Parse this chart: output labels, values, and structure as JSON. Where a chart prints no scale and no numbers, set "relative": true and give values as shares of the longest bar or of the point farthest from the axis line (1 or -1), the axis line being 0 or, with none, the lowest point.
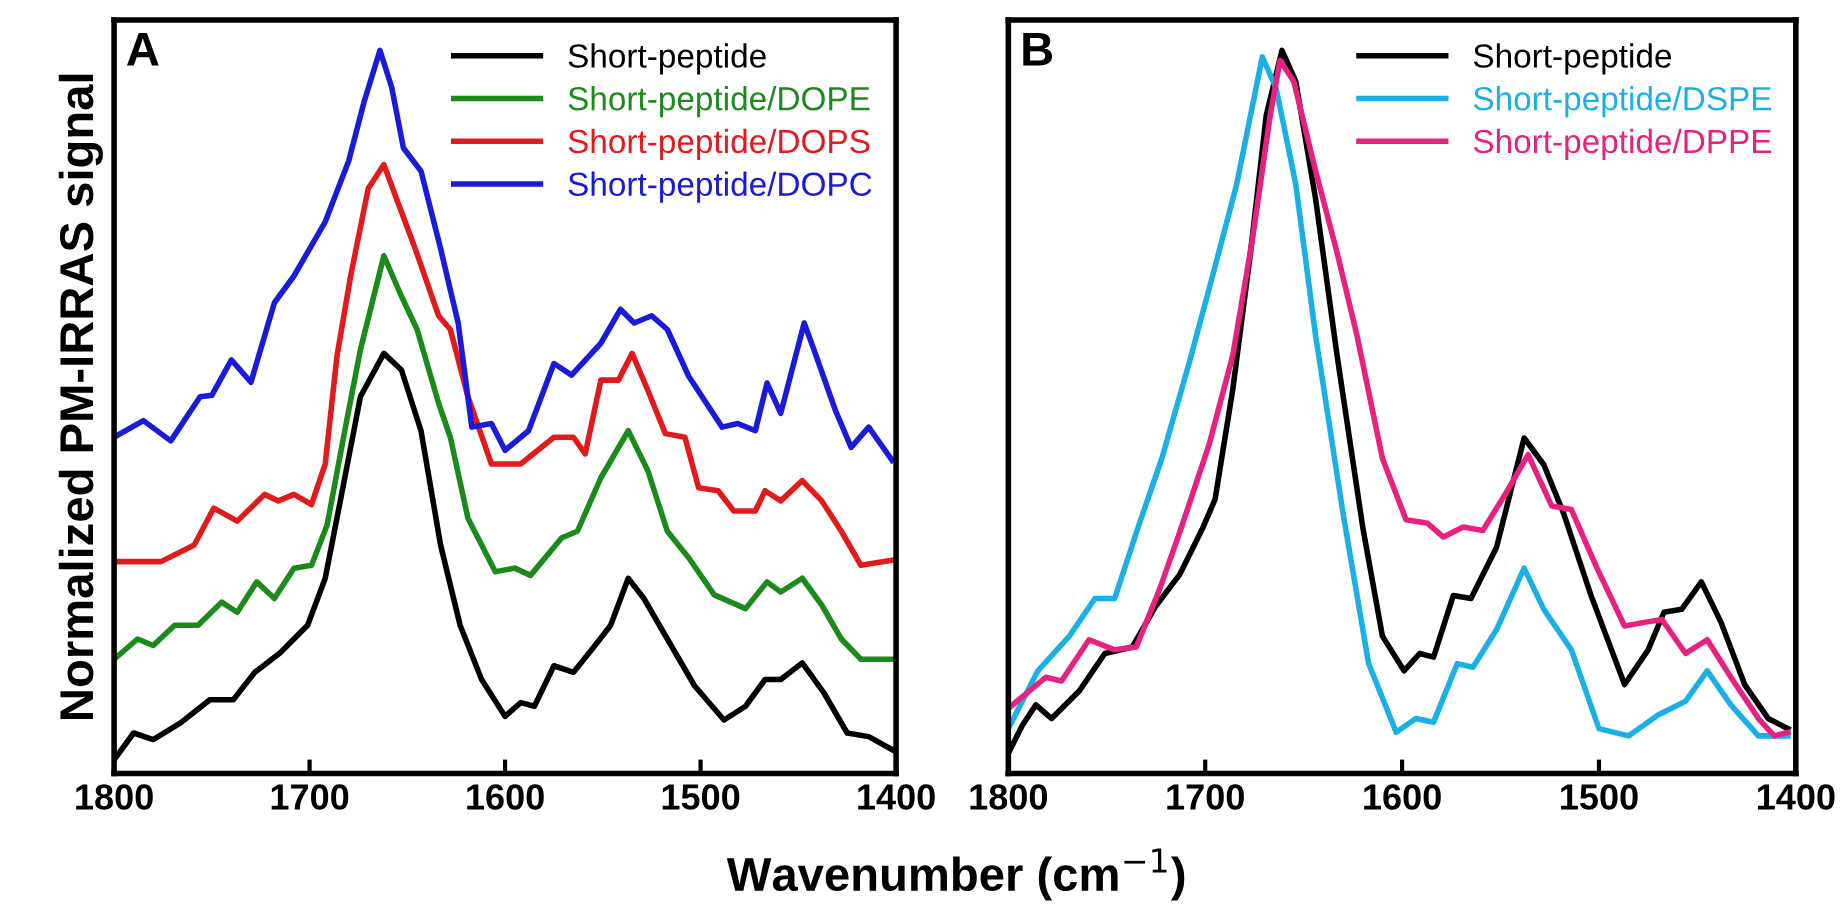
{
  "chart_data": [
    {
      "type": "line",
      "title": "A",
      "ylabel": "Normalized PM-IRRAS signal",
      "xlabel": "Wavenumber (cm$^{−1}$)",
      "relative": true,
      "xlim": [
        1800,
        1400
      ],
      "xticks": [
        1800,
        1700,
        1600,
        1500,
        1400
      ],
      "tick_labels": "x",
      "legend": "top right",
      "series": [
        {
          "name": "Short-peptide",
          "color": "#000000",
          "x": [
            1800,
            1790,
            1780,
            1766,
            1751,
            1739,
            1728,
            1715,
            1701,
            1692,
            1684,
            1674,
            1662,
            1653,
            1643,
            1633,
            1623,
            1612,
            1600,
            1592,
            1585,
            1575,
            1565,
            1554,
            1546,
            1537,
            1529,
            1517,
            1503,
            1488,
            1477,
            1467,
            1459,
            1448,
            1437,
            1425,
            1414,
            1402
          ],
          "values": [
            0.019,
            0.056,
            0.047,
            0.07,
            0.102,
            0.102,
            0.14,
            0.167,
            0.205,
            0.27,
            0.381,
            0.521,
            0.581,
            0.558,
            0.474,
            0.316,
            0.205,
            0.13,
            0.079,
            0.098,
            0.093,
            0.149,
            0.14,
            0.177,
            0.205,
            0.27,
            0.242,
            0.186,
            0.121,
            0.074,
            0.093,
            0.13,
            0.13,
            0.153,
            0.112,
            0.056,
            0.051,
            0.033
          ]
        },
        {
          "name": "Short-peptide/DOPE",
          "color": "#1a8a1a",
          "x": [
            1800,
            1788,
            1780,
            1769,
            1757,
            1745,
            1737,
            1727,
            1718,
            1708,
            1699,
            1691,
            1682,
            1674,
            1662,
            1653,
            1645,
            1634,
            1628,
            1619,
            1605,
            1595,
            1587,
            1571,
            1563,
            1551,
            1537,
            1527,
            1517,
            1506,
            1493,
            1477,
            1466,
            1459,
            1448,
            1438,
            1428,
            1418,
            1402
          ],
          "values": [
            0.158,
            0.186,
            0.177,
            0.205,
            0.205,
            0.237,
            0.223,
            0.265,
            0.242,
            0.284,
            0.288,
            0.344,
            0.474,
            0.586,
            0.716,
            0.66,
            0.614,
            0.512,
            0.465,
            0.353,
            0.279,
            0.284,
            0.274,
            0.326,
            0.335,
            0.409,
            0.474,
            0.419,
            0.335,
            0.298,
            0.247,
            0.228,
            0.265,
            0.251,
            0.27,
            0.233,
            0.186,
            0.158,
            0.158
          ]
        },
        {
          "name": "Short-peptide/DOPS",
          "color": "#e31a1c",
          "x": [
            1800,
            1776,
            1759,
            1749,
            1737,
            1723,
            1716,
            1708,
            1699,
            1692,
            1686,
            1679,
            1670,
            1662,
            1655,
            1646,
            1634,
            1628,
            1619,
            1607,
            1592,
            1575,
            1565,
            1559,
            1551,
            1542,
            1535,
            1527,
            1518,
            1508,
            1501,
            1491,
            1483,
            1472,
            1467,
            1459,
            1448,
            1438,
            1428,
            1418,
            1402
          ],
          "values": [
            0.293,
            0.293,
            0.316,
            0.367,
            0.349,
            0.386,
            0.377,
            0.386,
            0.372,
            0.428,
            0.577,
            0.688,
            0.809,
            0.842,
            0.791,
            0.726,
            0.633,
            0.614,
            0.521,
            0.428,
            0.428,
            0.465,
            0.465,
            0.442,
            0.544,
            0.544,
            0.581,
            0.53,
            0.47,
            0.465,
            0.395,
            0.391,
            0.363,
            0.363,
            0.391,
            0.377,
            0.405,
            0.377,
            0.335,
            0.288,
            0.295
          ]
        },
        {
          "name": "Short-peptide/DOPC",
          "color": "#1a1adb",
          "x": [
            1800,
            1785,
            1771,
            1756,
            1750,
            1740,
            1730,
            1718,
            1708,
            1692,
            1680,
            1672,
            1664,
            1658,
            1652,
            1643,
            1633,
            1624,
            1617,
            1607,
            1600,
            1588,
            1575,
            1566,
            1551,
            1541,
            1534,
            1525,
            1517,
            1506,
            1489,
            1481,
            1472,
            1466,
            1459,
            1447,
            1442,
            1431,
            1423,
            1414,
            1402
          ],
          "values": [
            0.465,
            0.488,
            0.46,
            0.521,
            0.523,
            0.572,
            0.541,
            0.651,
            0.688,
            0.763,
            0.847,
            0.93,
            1.0,
            0.949,
            0.865,
            0.833,
            0.726,
            0.623,
            0.479,
            0.484,
            0.447,
            0.474,
            0.567,
            0.551,
            0.595,
            0.642,
            0.623,
            0.633,
            0.614,
            0.549,
            0.479,
            0.484,
            0.474,
            0.54,
            0.498,
            0.623,
            0.586,
            0.502,
            0.451,
            0.479,
            0.433
          ]
        }
      ]
    },
    {
      "type": "line",
      "title": "B",
      "relative": true,
      "xlim": [
        1800,
        1400
      ],
      "xticks": [
        1800,
        1700,
        1600,
        1500,
        1400
      ],
      "tick_labels": "x",
      "legend": "top right",
      "series": [
        {
          "name": "Short-peptide",
          "color": "#000000",
          "x": [
            1800,
            1793,
            1786,
            1778,
            1764,
            1751,
            1737,
            1725,
            1713,
            1701,
            1695,
            1686,
            1677,
            1669,
            1661,
            1654,
            1644,
            1633,
            1620,
            1610,
            1599,
            1591,
            1584,
            1574,
            1565,
            1552,
            1538,
            1528,
            1518,
            1504,
            1487,
            1475,
            1467,
            1458,
            1448,
            1438,
            1426,
            1414,
            1404
          ],
          "values": [
            0.028,
            0.066,
            0.095,
            0.076,
            0.114,
            0.166,
            0.175,
            0.232,
            0.275,
            0.341,
            0.379,
            0.531,
            0.72,
            0.91,
            1.0,
            0.957,
            0.796,
            0.578,
            0.341,
            0.19,
            0.142,
            0.166,
            0.161,
            0.246,
            0.242,
            0.313,
            0.464,
            0.427,
            0.36,
            0.246,
            0.123,
            0.171,
            0.223,
            0.227,
            0.265,
            0.209,
            0.123,
            0.076,
            0.062
          ]
        },
        {
          "name": "Short-peptide/DSPE",
          "color": "#1ab0e6",
          "x": [
            1800,
            1785,
            1769,
            1756,
            1746,
            1734,
            1722,
            1708,
            1695,
            1684,
            1671,
            1664,
            1654,
            1644,
            1630,
            1617,
            1603,
            1593,
            1584,
            1572,
            1564,
            1552,
            1538,
            1528,
            1514,
            1500,
            1485,
            1470,
            1456,
            1445,
            1433,
            1419,
            1404
          ],
          "values": [
            0.062,
            0.142,
            0.19,
            0.242,
            0.242,
            0.341,
            0.436,
            0.569,
            0.701,
            0.815,
            0.991,
            0.948,
            0.815,
            0.607,
            0.36,
            0.152,
            0.057,
            0.076,
            0.071,
            0.152,
            0.147,
            0.199,
            0.284,
            0.227,
            0.171,
            0.062,
            0.052,
            0.081,
            0.1,
            0.142,
            0.095,
            0.052,
            0.052
          ]
        },
        {
          "name": "Short-peptide/DPPE",
          "color": "#e8207f",
          "x": [
            1800,
            1781,
            1773,
            1759,
            1746,
            1735,
            1723,
            1712,
            1698,
            1686,
            1676,
            1667,
            1662,
            1655,
            1644,
            1633,
            1623,
            1610,
            1598,
            1587,
            1579,
            1569,
            1559,
            1547,
            1536,
            1524,
            1514,
            1501,
            1487,
            1477,
            1468,
            1456,
            1445,
            1433,
            1419,
            1411,
            1404
          ],
          "values": [
            0.09,
            0.133,
            0.128,
            0.185,
            0.171,
            0.175,
            0.256,
            0.341,
            0.455,
            0.578,
            0.739,
            0.91,
            0.986,
            0.957,
            0.834,
            0.72,
            0.607,
            0.436,
            0.351,
            0.346,
            0.327,
            0.341,
            0.336,
            0.389,
            0.441,
            0.37,
            0.365,
            0.284,
            0.204,
            0.209,
            0.213,
            0.166,
            0.185,
            0.133,
            0.076,
            0.052,
            0.057
          ]
        }
      ]
    }
  ]
}
